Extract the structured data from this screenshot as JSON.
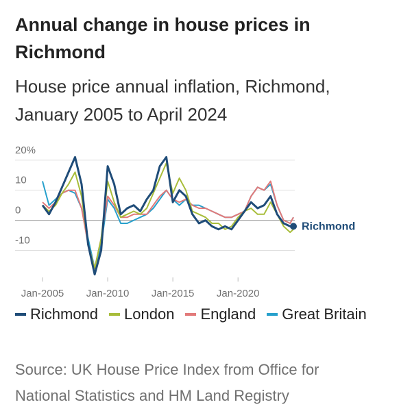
{
  "chart_data": {
    "type": "line",
    "title": "Annual change in house prices in Richmond",
    "subtitle": "House price annual inflation, Richmond, January 2005 to April 2024",
    "source": "Source: UK House Price Index from Office for National Statistics and HM Land Registry",
    "x": [
      2005,
      2005.5,
      2006,
      2006.5,
      2007,
      2007.5,
      2008,
      2008.5,
      2009,
      2009.5,
      2010,
      2010.5,
      2011,
      2011.5,
      2012,
      2012.5,
      2013,
      2013.5,
      2014,
      2014.5,
      2015,
      2015.5,
      2016,
      2016.5,
      2017,
      2017.5,
      2018,
      2018.5,
      2019,
      2019.5,
      2020,
      2020.5,
      2021,
      2021.5,
      2022,
      2022.5,
      2023,
      2023.5,
      2024,
      2024.25
    ],
    "series": [
      {
        "name": "Richmond",
        "color": "#1f4c78",
        "values": [
          5,
          2,
          6,
          11,
          16,
          21,
          12,
          -8,
          -18,
          -10,
          18,
          12,
          2,
          4,
          5,
          3,
          7,
          10,
          18,
          21,
          6,
          10,
          8,
          2,
          -1,
          0,
          -2,
          -3,
          -2,
          -3,
          0,
          3,
          6,
          4,
          5,
          8,
          2,
          -1,
          -2,
          -2
        ]
      },
      {
        "name": "London",
        "color": "#a8bd3a",
        "values": [
          5,
          3,
          5,
          9,
          12,
          16,
          8,
          -8,
          -16,
          -6,
          13,
          6,
          1,
          2,
          3,
          2,
          4,
          9,
          14,
          19,
          9,
          14,
          10,
          3,
          2,
          1,
          -1,
          -1,
          -3,
          -2,
          1,
          3,
          4,
          2,
          2,
          6,
          2,
          -2,
          -4,
          -3
        ]
      },
      {
        "name": "England",
        "color": "#e27a7a",
        "values": [
          6,
          4,
          6,
          9,
          10,
          10,
          4,
          -8,
          -16,
          -6,
          8,
          5,
          1,
          1,
          2,
          2,
          2,
          5,
          8,
          10,
          7,
          6,
          7,
          5,
          4,
          4,
          3,
          2,
          1,
          1,
          2,
          3,
          8,
          11,
          10,
          13,
          5,
          0,
          -1,
          1
        ]
      },
      {
        "name": "Great Britain",
        "color": "#27a0cc",
        "values": [
          13,
          5,
          7,
          9,
          10,
          9,
          4,
          -6,
          -16,
          -8,
          7,
          4,
          -1,
          -1,
          0,
          1,
          2,
          4,
          7,
          10,
          7,
          5,
          7,
          5,
          5,
          4,
          3,
          2,
          1,
          1,
          2,
          3,
          8,
          11,
          10,
          12,
          5,
          0,
          -1,
          1
        ]
      }
    ],
    "xlim": [
      2005,
      2024.25
    ],
    "xticks": [
      {
        "value": 2005,
        "label": "Jan-2005"
      },
      {
        "value": 2010,
        "label": "Jan-2010"
      },
      {
        "value": 2015,
        "label": "Jan-2015"
      },
      {
        "value": 2020,
        "label": "Jan-2020"
      }
    ],
    "ylim": [
      -19,
      22
    ],
    "yticks": [
      -10,
      0,
      10,
      {
        "value": 20,
        "label": "20%"
      }
    ],
    "grid": true
  }
}
